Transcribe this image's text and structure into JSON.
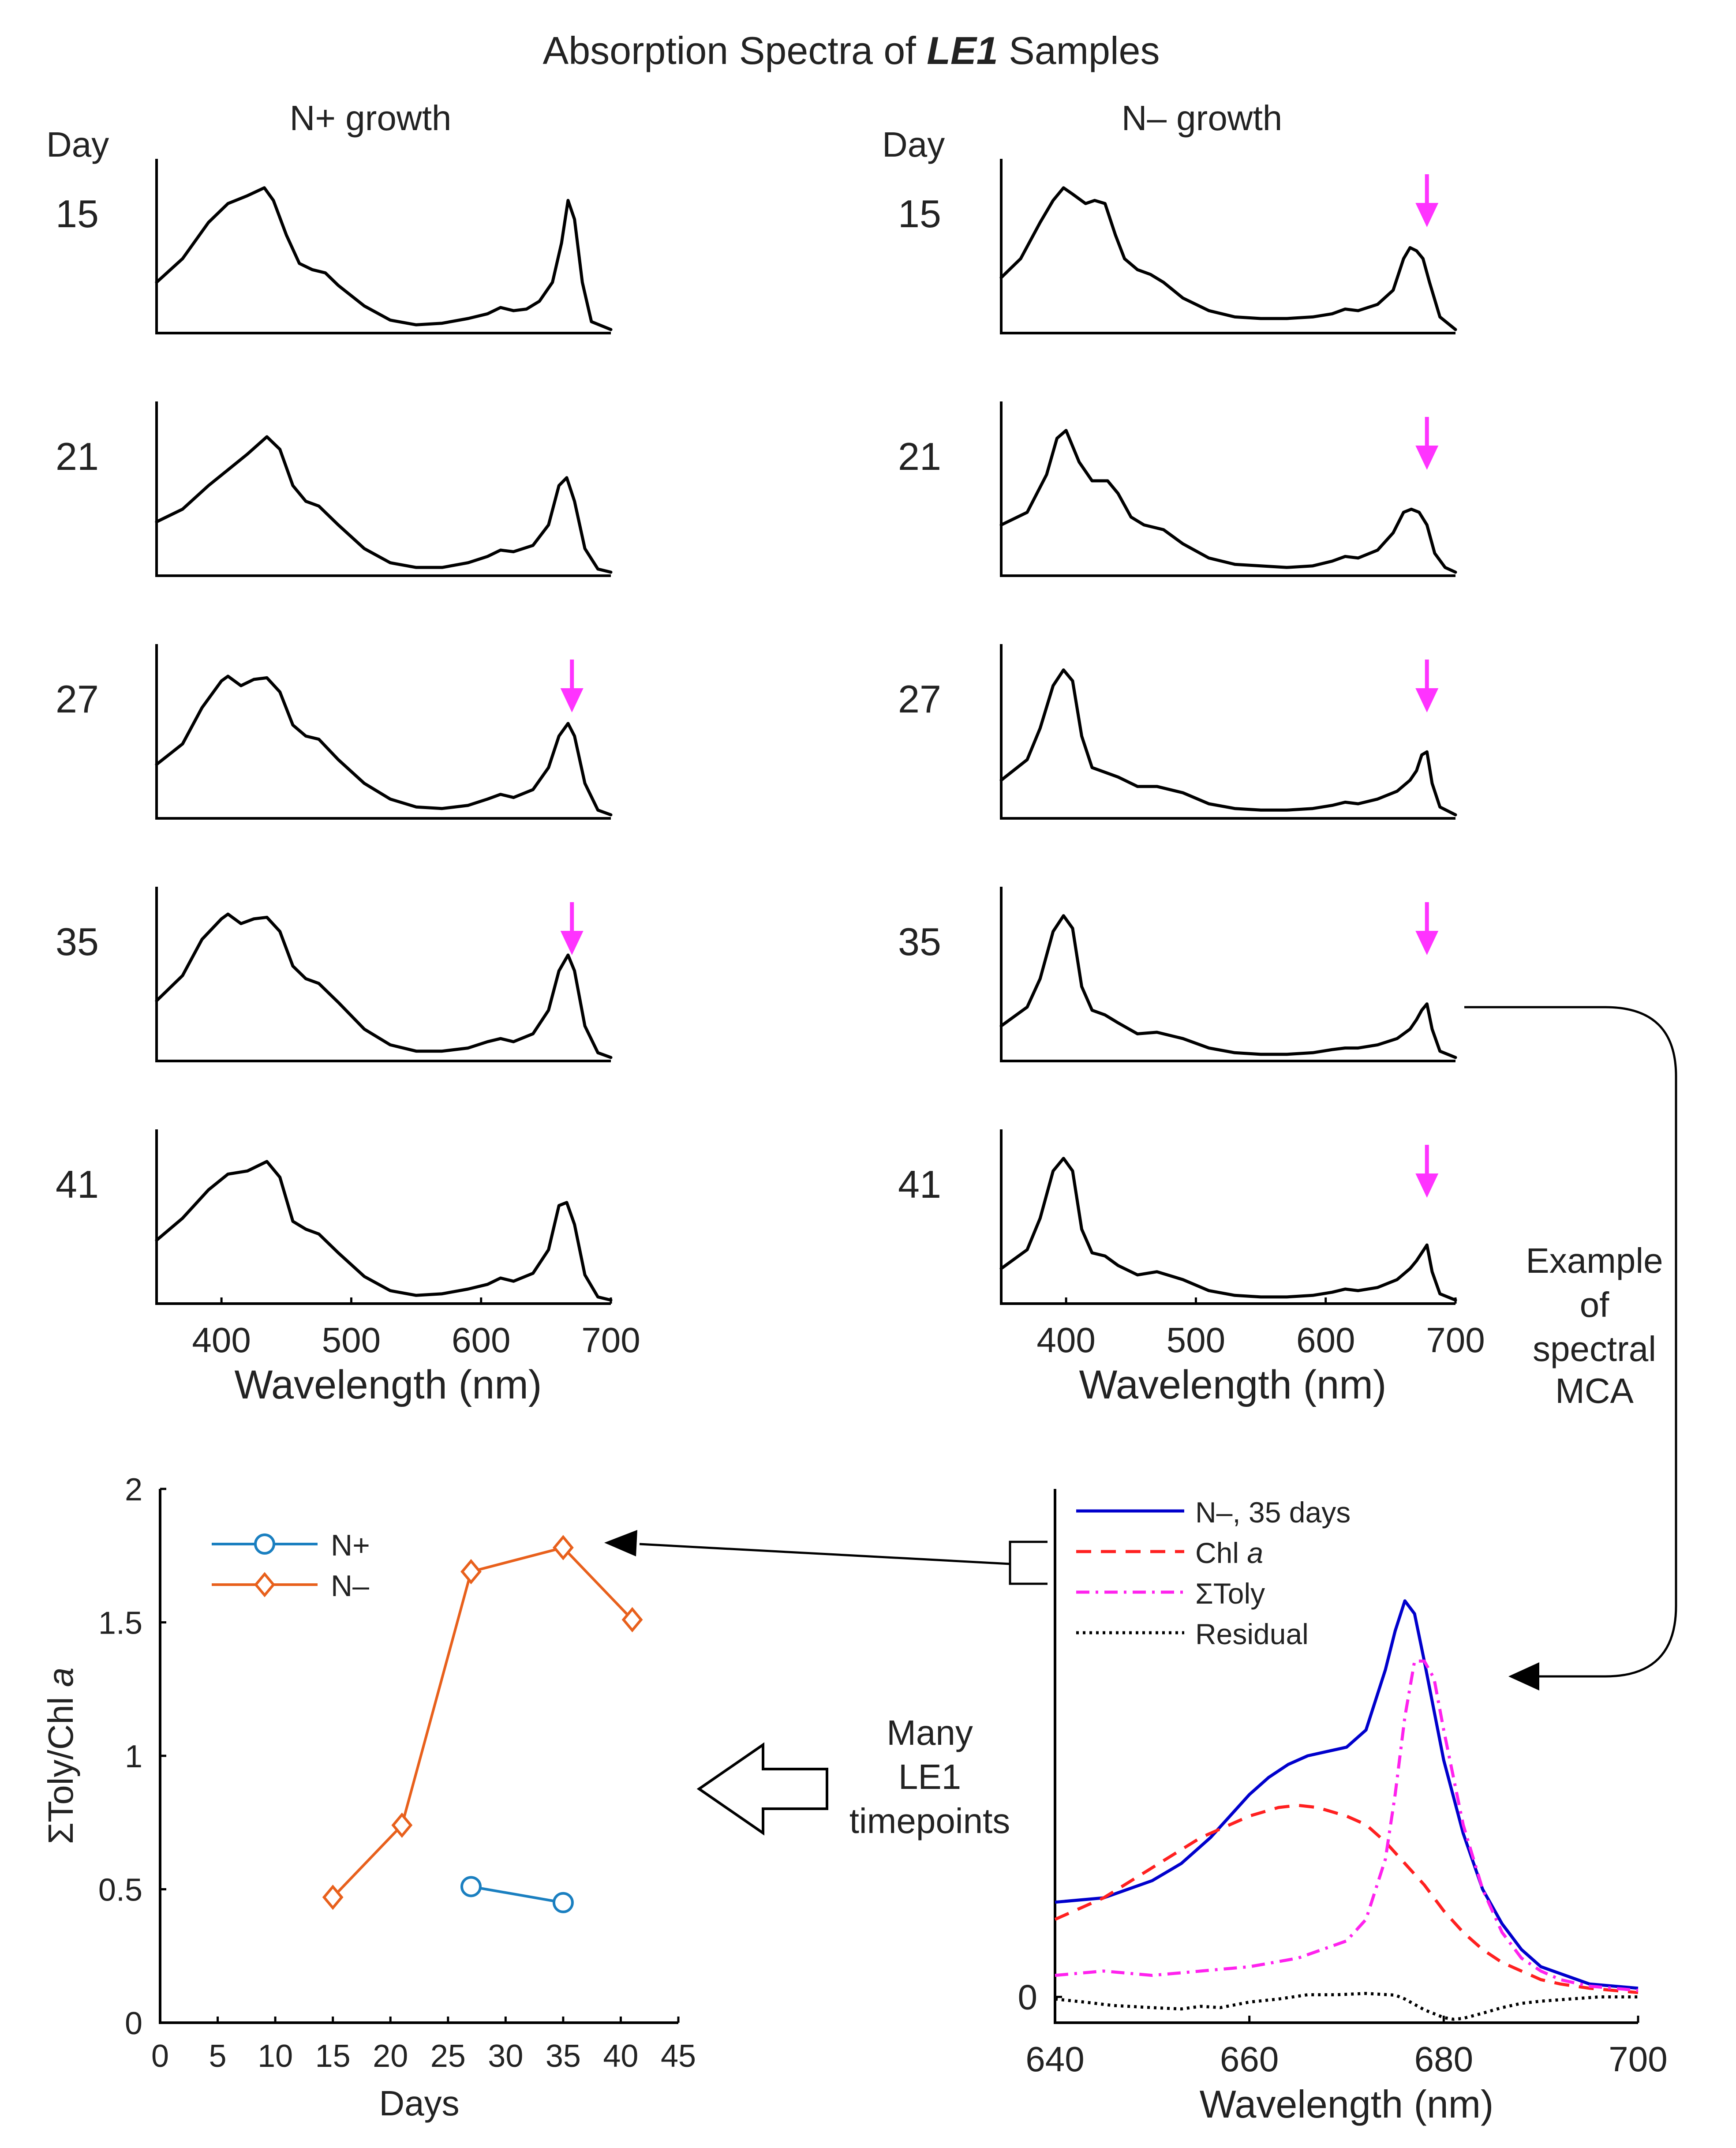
{
  "title": {
    "prefix": "Absorption Spectra of ",
    "emph": "LE1",
    "suffix": " Samples"
  },
  "columns": {
    "left": "N+ growth",
    "right": "N– growth"
  },
  "day_label": "Day",
  "colors": {
    "spectrum": "#000000",
    "arrow": "#ff33ff",
    "nplus": "#1a7fc0",
    "nminus": "#e8601c",
    "mca_n": "#0000cc",
    "mca_chl": "#ff2020",
    "mca_toly": "#ff22ee",
    "mca_res": "#000000",
    "connector": "#000000"
  },
  "annotations": {
    "example": [
      "Example",
      "of",
      "spectral",
      "MCA"
    ],
    "timepoints": [
      "Many",
      "LE1",
      "timepoints"
    ]
  },
  "chart_data": [
    {
      "type": "line",
      "name": "N+ growth absorption spectra",
      "xlabel": "Wavelength (nm)",
      "xlim": [
        350,
        700
      ],
      "xticks": [
        "400",
        "500",
        "600",
        "700"
      ],
      "ylim": [
        0,
        1
      ],
      "panels": [
        {
          "day": "15",
          "arrow_nm": null,
          "x": [
            350,
            370,
            390,
            405,
            420,
            433,
            440,
            450,
            460,
            470,
            480,
            490,
            510,
            530,
            550,
            570,
            590,
            605,
            615,
            625,
            635,
            645,
            655,
            662,
            667,
            672,
            678,
            685,
            700
          ],
          "y": [
            0.3,
            0.45,
            0.68,
            0.8,
            0.85,
            0.9,
            0.82,
            0.6,
            0.42,
            0.38,
            0.36,
            0.28,
            0.15,
            0.06,
            0.03,
            0.04,
            0.07,
            0.1,
            0.14,
            0.12,
            0.13,
            0.18,
            0.3,
            0.55,
            0.82,
            0.7,
            0.3,
            0.05,
            0.0
          ]
        },
        {
          "day": "21",
          "arrow_nm": null,
          "x": [
            350,
            370,
            390,
            405,
            420,
            435,
            445,
            455,
            465,
            475,
            490,
            510,
            530,
            550,
            570,
            590,
            605,
            615,
            625,
            640,
            652,
            660,
            666,
            672,
            680,
            690,
            700
          ],
          "y": [
            0.32,
            0.4,
            0.55,
            0.65,
            0.75,
            0.86,
            0.78,
            0.55,
            0.45,
            0.42,
            0.3,
            0.15,
            0.06,
            0.03,
            0.03,
            0.06,
            0.1,
            0.14,
            0.13,
            0.17,
            0.3,
            0.55,
            0.6,
            0.45,
            0.15,
            0.02,
            0.0
          ]
        },
        {
          "day": "27",
          "arrow_nm": 670,
          "x": [
            350,
            370,
            385,
            400,
            405,
            415,
            425,
            435,
            445,
            455,
            465,
            475,
            490,
            510,
            530,
            550,
            570,
            590,
            605,
            615,
            625,
            640,
            652,
            660,
            667,
            672,
            680,
            690,
            700
          ],
          "y": [
            0.32,
            0.45,
            0.68,
            0.85,
            0.88,
            0.82,
            0.86,
            0.87,
            0.78,
            0.57,
            0.5,
            0.48,
            0.35,
            0.2,
            0.1,
            0.05,
            0.04,
            0.06,
            0.1,
            0.13,
            0.11,
            0.16,
            0.3,
            0.5,
            0.58,
            0.5,
            0.2,
            0.03,
            0.0
          ]
        },
        {
          "day": "35",
          "arrow_nm": 670,
          "x": [
            350,
            370,
            385,
            400,
            405,
            415,
            425,
            435,
            445,
            455,
            465,
            475,
            490,
            510,
            530,
            550,
            570,
            590,
            605,
            615,
            625,
            640,
            652,
            660,
            667,
            672,
            680,
            690,
            700
          ],
          "y": [
            0.36,
            0.52,
            0.75,
            0.88,
            0.91,
            0.85,
            0.88,
            0.89,
            0.8,
            0.58,
            0.5,
            0.47,
            0.35,
            0.18,
            0.08,
            0.04,
            0.04,
            0.06,
            0.1,
            0.12,
            0.1,
            0.15,
            0.3,
            0.55,
            0.65,
            0.55,
            0.2,
            0.03,
            0.0
          ]
        },
        {
          "day": "41",
          "arrow_nm": null,
          "x": [
            350,
            370,
            390,
            405,
            420,
            435,
            445,
            455,
            465,
            475,
            490,
            510,
            530,
            550,
            570,
            590,
            605,
            615,
            625,
            640,
            652,
            660,
            666,
            672,
            680,
            690,
            700
          ],
          "y": [
            0.38,
            0.52,
            0.7,
            0.8,
            0.82,
            0.88,
            0.78,
            0.5,
            0.45,
            0.42,
            0.3,
            0.15,
            0.06,
            0.03,
            0.04,
            0.07,
            0.1,
            0.14,
            0.12,
            0.17,
            0.32,
            0.6,
            0.62,
            0.48,
            0.16,
            0.02,
            0.0
          ]
        }
      ]
    },
    {
      "type": "line",
      "name": "N– growth absorption spectra",
      "xlabel": "Wavelength (nm)",
      "xlim": [
        350,
        700
      ],
      "xticks": [
        "400",
        "500",
        "600",
        "700"
      ],
      "ylim": [
        0,
        1
      ],
      "panels": [
        {
          "day": "15",
          "arrow_nm": 678,
          "x": [
            350,
            365,
            380,
            390,
            398,
            405,
            415,
            422,
            430,
            438,
            445,
            455,
            465,
            475,
            490,
            510,
            530,
            550,
            570,
            590,
            605,
            615,
            625,
            640,
            652,
            660,
            665,
            670,
            675,
            680,
            688,
            700
          ],
          "y": [
            0.33,
            0.45,
            0.68,
            0.82,
            0.9,
            0.86,
            0.8,
            0.82,
            0.8,
            0.6,
            0.45,
            0.38,
            0.35,
            0.3,
            0.2,
            0.12,
            0.08,
            0.07,
            0.07,
            0.08,
            0.1,
            0.13,
            0.12,
            0.16,
            0.25,
            0.45,
            0.52,
            0.5,
            0.45,
            0.3,
            0.08,
            0.0
          ]
        },
        {
          "day": "21",
          "arrow_nm": 678,
          "x": [
            350,
            370,
            385,
            393,
            400,
            410,
            420,
            432,
            440,
            450,
            460,
            475,
            490,
            510,
            530,
            550,
            570,
            590,
            605,
            615,
            625,
            640,
            652,
            660,
            666,
            672,
            678,
            684,
            692,
            700
          ],
          "y": [
            0.3,
            0.38,
            0.62,
            0.85,
            0.9,
            0.7,
            0.58,
            0.58,
            0.5,
            0.35,
            0.3,
            0.27,
            0.18,
            0.09,
            0.05,
            0.04,
            0.03,
            0.04,
            0.07,
            0.1,
            0.09,
            0.14,
            0.25,
            0.38,
            0.4,
            0.38,
            0.3,
            0.12,
            0.03,
            0.0
          ]
        },
        {
          "day": "27",
          "arrow_nm": 678,
          "x": [
            350,
            370,
            380,
            390,
            398,
            405,
            412,
            420,
            430,
            440,
            455,
            470,
            490,
            510,
            530,
            550,
            570,
            590,
            605,
            615,
            625,
            640,
            655,
            665,
            670,
            674,
            678,
            682,
            688,
            700
          ],
          "y": [
            0.22,
            0.35,
            0.55,
            0.82,
            0.92,
            0.85,
            0.5,
            0.3,
            0.27,
            0.24,
            0.18,
            0.18,
            0.14,
            0.07,
            0.04,
            0.03,
            0.03,
            0.04,
            0.06,
            0.08,
            0.07,
            0.1,
            0.15,
            0.22,
            0.28,
            0.38,
            0.4,
            0.2,
            0.05,
            0.0
          ]
        },
        {
          "day": "35",
          "arrow_nm": 678,
          "x": [
            350,
            370,
            380,
            390,
            398,
            405,
            412,
            420,
            430,
            440,
            455,
            470,
            490,
            510,
            530,
            550,
            570,
            590,
            605,
            615,
            625,
            640,
            655,
            665,
            670,
            674,
            678,
            682,
            688,
            700
          ],
          "y": [
            0.2,
            0.32,
            0.5,
            0.8,
            0.9,
            0.82,
            0.45,
            0.3,
            0.27,
            0.22,
            0.15,
            0.16,
            0.12,
            0.06,
            0.03,
            0.02,
            0.02,
            0.03,
            0.05,
            0.06,
            0.06,
            0.08,
            0.12,
            0.18,
            0.24,
            0.3,
            0.34,
            0.18,
            0.04,
            0.0
          ]
        },
        {
          "day": "41",
          "arrow_nm": 678,
          "x": [
            350,
            370,
            380,
            390,
            398,
            405,
            412,
            420,
            430,
            440,
            455,
            470,
            490,
            510,
            530,
            550,
            570,
            590,
            605,
            615,
            625,
            640,
            655,
            665,
            670,
            674,
            678,
            682,
            688,
            700
          ],
          "y": [
            0.2,
            0.32,
            0.52,
            0.82,
            0.9,
            0.82,
            0.45,
            0.3,
            0.28,
            0.22,
            0.16,
            0.18,
            0.13,
            0.06,
            0.03,
            0.02,
            0.02,
            0.03,
            0.05,
            0.07,
            0.06,
            0.08,
            0.13,
            0.2,
            0.25,
            0.3,
            0.35,
            0.18,
            0.04,
            0.0
          ]
        }
      ]
    },
    {
      "type": "line",
      "name": "Spectral MCA example",
      "xlabel": "Wavelength (nm)",
      "xlim": [
        640,
        700
      ],
      "xticks": [
        "640",
        "660",
        "680",
        "700"
      ],
      "ylim": [
        -0.06,
        1.18
      ],
      "yticks": [
        "0"
      ],
      "legend_position": "top-left",
      "series": [
        {
          "name": "N–, 35 days",
          "style": "solid",
          "x": [
            640,
            645,
            650,
            653,
            655,
            656,
            658,
            660,
            662,
            664,
            666,
            668,
            670,
            672,
            674,
            675,
            676,
            677,
            678,
            680,
            682,
            684,
            686,
            688,
            690,
            695,
            700
          ],
          "y": [
            0.22,
            0.23,
            0.27,
            0.31,
            0.35,
            0.37,
            0.42,
            0.47,
            0.51,
            0.54,
            0.56,
            0.57,
            0.58,
            0.62,
            0.76,
            0.85,
            0.92,
            0.89,
            0.78,
            0.55,
            0.38,
            0.25,
            0.17,
            0.11,
            0.07,
            0.03,
            0.02
          ]
        },
        {
          "name": "Chl a",
          "style": "dashed",
          "label_plain": "Chl ",
          "label_emph": "a",
          "x": [
            640,
            645,
            650,
            655,
            660,
            663,
            665,
            667,
            670,
            672,
            674,
            676,
            678,
            680,
            682,
            684,
            686,
            688,
            690,
            692,
            695,
            700
          ],
          "y": [
            0.18,
            0.23,
            0.3,
            0.37,
            0.42,
            0.44,
            0.445,
            0.44,
            0.42,
            0.4,
            0.36,
            0.31,
            0.26,
            0.2,
            0.15,
            0.11,
            0.08,
            0.06,
            0.04,
            0.03,
            0.02,
            0.01
          ]
        },
        {
          "name": "ΣToly",
          "style": "dashdot",
          "x": [
            640,
            645,
            650,
            655,
            660,
            665,
            670,
            672,
            674,
            675,
            676,
            677,
            678,
            679,
            680,
            682,
            684,
            686,
            688,
            690,
            692,
            695,
            700
          ],
          "y": [
            0.05,
            0.06,
            0.05,
            0.06,
            0.07,
            0.09,
            0.13,
            0.18,
            0.32,
            0.47,
            0.65,
            0.78,
            0.78,
            0.74,
            0.62,
            0.4,
            0.25,
            0.15,
            0.09,
            0.06,
            0.04,
            0.025,
            0.015
          ]
        },
        {
          "name": "Residual",
          "style": "dotted",
          "x": [
            640,
            643,
            646,
            650,
            653,
            655,
            657,
            660,
            663,
            666,
            669,
            672,
            675,
            676,
            678,
            680,
            681,
            682,
            684,
            686,
            688,
            690,
            693,
            696,
            700
          ],
          "y": [
            -0.005,
            -0.012,
            -0.02,
            -0.025,
            -0.028,
            -0.022,
            -0.025,
            -0.012,
            -0.005,
            0.005,
            0.005,
            0.008,
            0.004,
            -0.005,
            -0.03,
            -0.048,
            -0.052,
            -0.05,
            -0.038,
            -0.025,
            -0.015,
            -0.01,
            -0.005,
            0.0,
            0.0
          ]
        }
      ]
    },
    {
      "type": "line",
      "name": "Toly to Chl a ratio over time",
      "xlabel": "Days",
      "ylabel": "ΣToly/Chl a",
      "ylabel_plain": "ΣToly/Chl ",
      "ylabel_emph": "a",
      "xlim": [
        0,
        45
      ],
      "ylim": [
        0,
        2
      ],
      "xticks": [
        "0",
        "5",
        "10",
        "15",
        "20",
        "25",
        "30",
        "35",
        "40",
        "45"
      ],
      "yticks": [
        "0",
        "0.5",
        "1",
        "1.5",
        "2"
      ],
      "legend_position": "top-left",
      "series": [
        {
          "name": "N+",
          "marker": "circle",
          "x": [
            27,
            35
          ],
          "y": [
            0.51,
            0.45
          ]
        },
        {
          "name": "N–",
          "marker": "diamond",
          "x": [
            15,
            21,
            27,
            35,
            41
          ],
          "y": [
            0.47,
            0.74,
            1.69,
            1.78,
            1.51
          ]
        }
      ]
    }
  ]
}
